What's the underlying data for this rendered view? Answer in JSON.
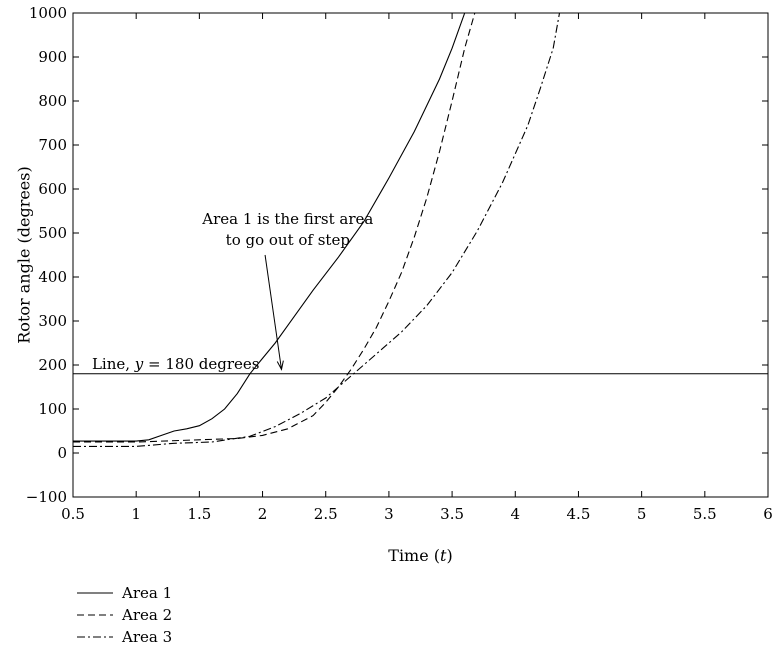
{
  "chart_data": {
    "type": "line",
    "xlabel": "Time (t)",
    "ylabel": "Rotor angle (degrees)",
    "xlim": [
      0.5,
      6
    ],
    "ylim": [
      -100,
      1000
    ],
    "xticks": [
      "0.5",
      "1",
      "1.5",
      "2",
      "2.5",
      "3",
      "3.5",
      "4",
      "4.5",
      "5",
      "5.5",
      "6"
    ],
    "yticks": [
      "−100",
      "0",
      "100",
      "200",
      "300",
      "400",
      "500",
      "600",
      "700",
      "800",
      "900",
      "1000"
    ],
    "grid": false,
    "legend_position": "below-left",
    "series": [
      {
        "name": "Area 1",
        "style": "solid",
        "x": [
          0.5,
          0.8,
          1.0,
          1.1,
          1.2,
          1.3,
          1.4,
          1.5,
          1.6,
          1.7,
          1.8,
          1.9,
          2.0,
          2.1,
          2.2,
          2.4,
          2.6,
          2.8,
          3.0,
          3.2,
          3.4,
          3.5,
          3.55,
          3.6
        ],
        "y": [
          27,
          27,
          27,
          30,
          40,
          50,
          55,
          62,
          78,
          100,
          135,
          180,
          215,
          250,
          290,
          370,
          445,
          525,
          625,
          730,
          850,
          920,
          960,
          1000
        ]
      },
      {
        "name": "Area 2",
        "style": "dashed",
        "x": [
          0.5,
          1.0,
          1.5,
          1.8,
          2.0,
          2.2,
          2.4,
          2.5,
          2.6,
          2.7,
          2.8,
          2.9,
          3.0,
          3.1,
          3.2,
          3.3,
          3.4,
          3.5,
          3.6,
          3.68
        ],
        "y": [
          25,
          25,
          30,
          33,
          40,
          55,
          85,
          115,
          150,
          190,
          235,
          285,
          345,
          410,
          490,
          580,
          685,
          800,
          920,
          1000
        ]
      },
      {
        "name": "Area 3",
        "style": "dashdot",
        "x": [
          0.5,
          0.8,
          1.0,
          1.3,
          1.6,
          1.9,
          2.1,
          2.3,
          2.5,
          2.7,
          2.9,
          3.1,
          3.3,
          3.5,
          3.7,
          3.9,
          4.1,
          4.2,
          4.3,
          4.35
        ],
        "y": [
          15,
          15,
          15,
          22,
          25,
          38,
          60,
          90,
          125,
          175,
          225,
          275,
          335,
          410,
          505,
          615,
          745,
          830,
          920,
          1000
        ]
      }
    ],
    "reference_line": {
      "y": 180,
      "label_prefix": "Line, ",
      "label_var": "y",
      "label_suffix": " = 180 degrees",
      "label_x": 0.65
    },
    "annotation": {
      "lines": [
        "Area 1 is the first area",
        "to go out of step"
      ],
      "text_x": 2.2,
      "text_y": 520,
      "arrow_from": [
        2.02,
        450
      ],
      "arrow_to": [
        2.15,
        190
      ]
    },
    "colors": {
      "line": "#000000",
      "background": "#ffffff"
    }
  }
}
